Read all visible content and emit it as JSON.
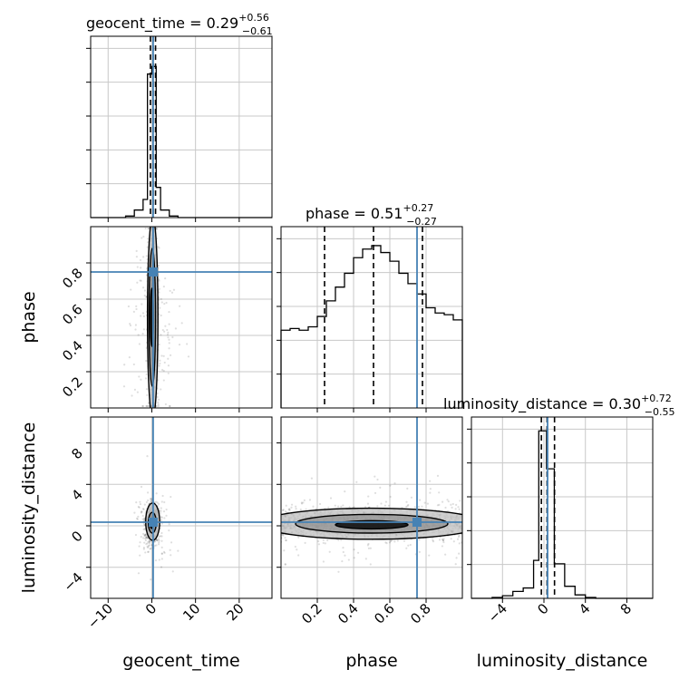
{
  "chart_data": {
    "type": "corner",
    "truth_color": "#4682b4",
    "parameters": [
      {
        "name": "geocent_time",
        "axis_label": "geocent_time",
        "title": {
          "prefix": "geocent_time = ",
          "median": "0.29",
          "upper": "+0.56",
          "lower": "−0.61"
        },
        "range": [
          -14,
          27.5
        ],
        "ticks": [
          -10,
          0,
          10,
          20
        ],
        "tick_labels": [
          "−10",
          "0",
          "10",
          "20"
        ],
        "median": 0.29,
        "lower": -0.32,
        "upper": 0.85,
        "truth": 0.3,
        "hist_edges": [
          -14,
          -12,
          -10,
          -8,
          -6,
          -4,
          -2,
          -1,
          0,
          1,
          2,
          4,
          6,
          8,
          10,
          27.5
        ],
        "hist_counts": [
          0,
          0,
          0,
          0,
          0.01,
          0.05,
          0.12,
          0.95,
          1.0,
          0.2,
          0.05,
          0.01,
          0,
          0,
          0
        ],
        "hist_ymax": 1.2
      },
      {
        "name": "phase",
        "axis_label": "phase",
        "title": {
          "prefix": "phase = ",
          "median": "0.51",
          "upper": "+0.27",
          "lower": "−0.27"
        },
        "range": [
          0.0,
          1.0
        ],
        "ticks": [
          0.2,
          0.4,
          0.6,
          0.8
        ],
        "tick_labels": [
          "0.2",
          "0.4",
          "0.6",
          "0.8"
        ],
        "median": 0.51,
        "lower": 0.24,
        "upper": 0.78,
        "truth": 0.75,
        "hist_edges": [
          0.0,
          0.05,
          0.1,
          0.15,
          0.2,
          0.25,
          0.3,
          0.35,
          0.4,
          0.45,
          0.5,
          0.55,
          0.6,
          0.65,
          0.7,
          0.75,
          0.8,
          0.85,
          0.9,
          0.95,
          1.0
        ],
        "hist_counts": [
          0.45,
          0.46,
          0.45,
          0.47,
          0.53,
          0.62,
          0.7,
          0.78,
          0.87,
          0.92,
          0.94,
          0.9,
          0.85,
          0.78,
          0.72,
          0.66,
          0.58,
          0.55,
          0.54,
          0.51
        ],
        "hist_ymax": 1.05
      },
      {
        "name": "luminosity_distance",
        "axis_label": "luminosity_distance",
        "title": {
          "prefix": "luminosity_distance = ",
          "median": "0.30",
          "upper": "+0.72",
          "lower": "−0.55"
        },
        "range": [
          -7,
          10.5
        ],
        "ticks": [
          -4,
          0,
          4,
          8
        ],
        "tick_labels": [
          "−4",
          "0",
          "4",
          "8"
        ],
        "median": 0.3,
        "lower": -0.25,
        "upper": 1.02,
        "truth": 0.35,
        "hist_edges": [
          -7,
          -5,
          -4,
          -3,
          -2,
          -1,
          -0.5,
          0.25,
          1.0,
          2.0,
          3.0,
          4.0,
          5.0,
          10.5
        ],
        "hist_counts": [
          0,
          0.005,
          0.015,
          0.04,
          0.06,
          0.22,
          0.97,
          0.75,
          0.2,
          0.07,
          0.02,
          0.005,
          0
        ],
        "hist_ymax": 1.05
      }
    ]
  }
}
